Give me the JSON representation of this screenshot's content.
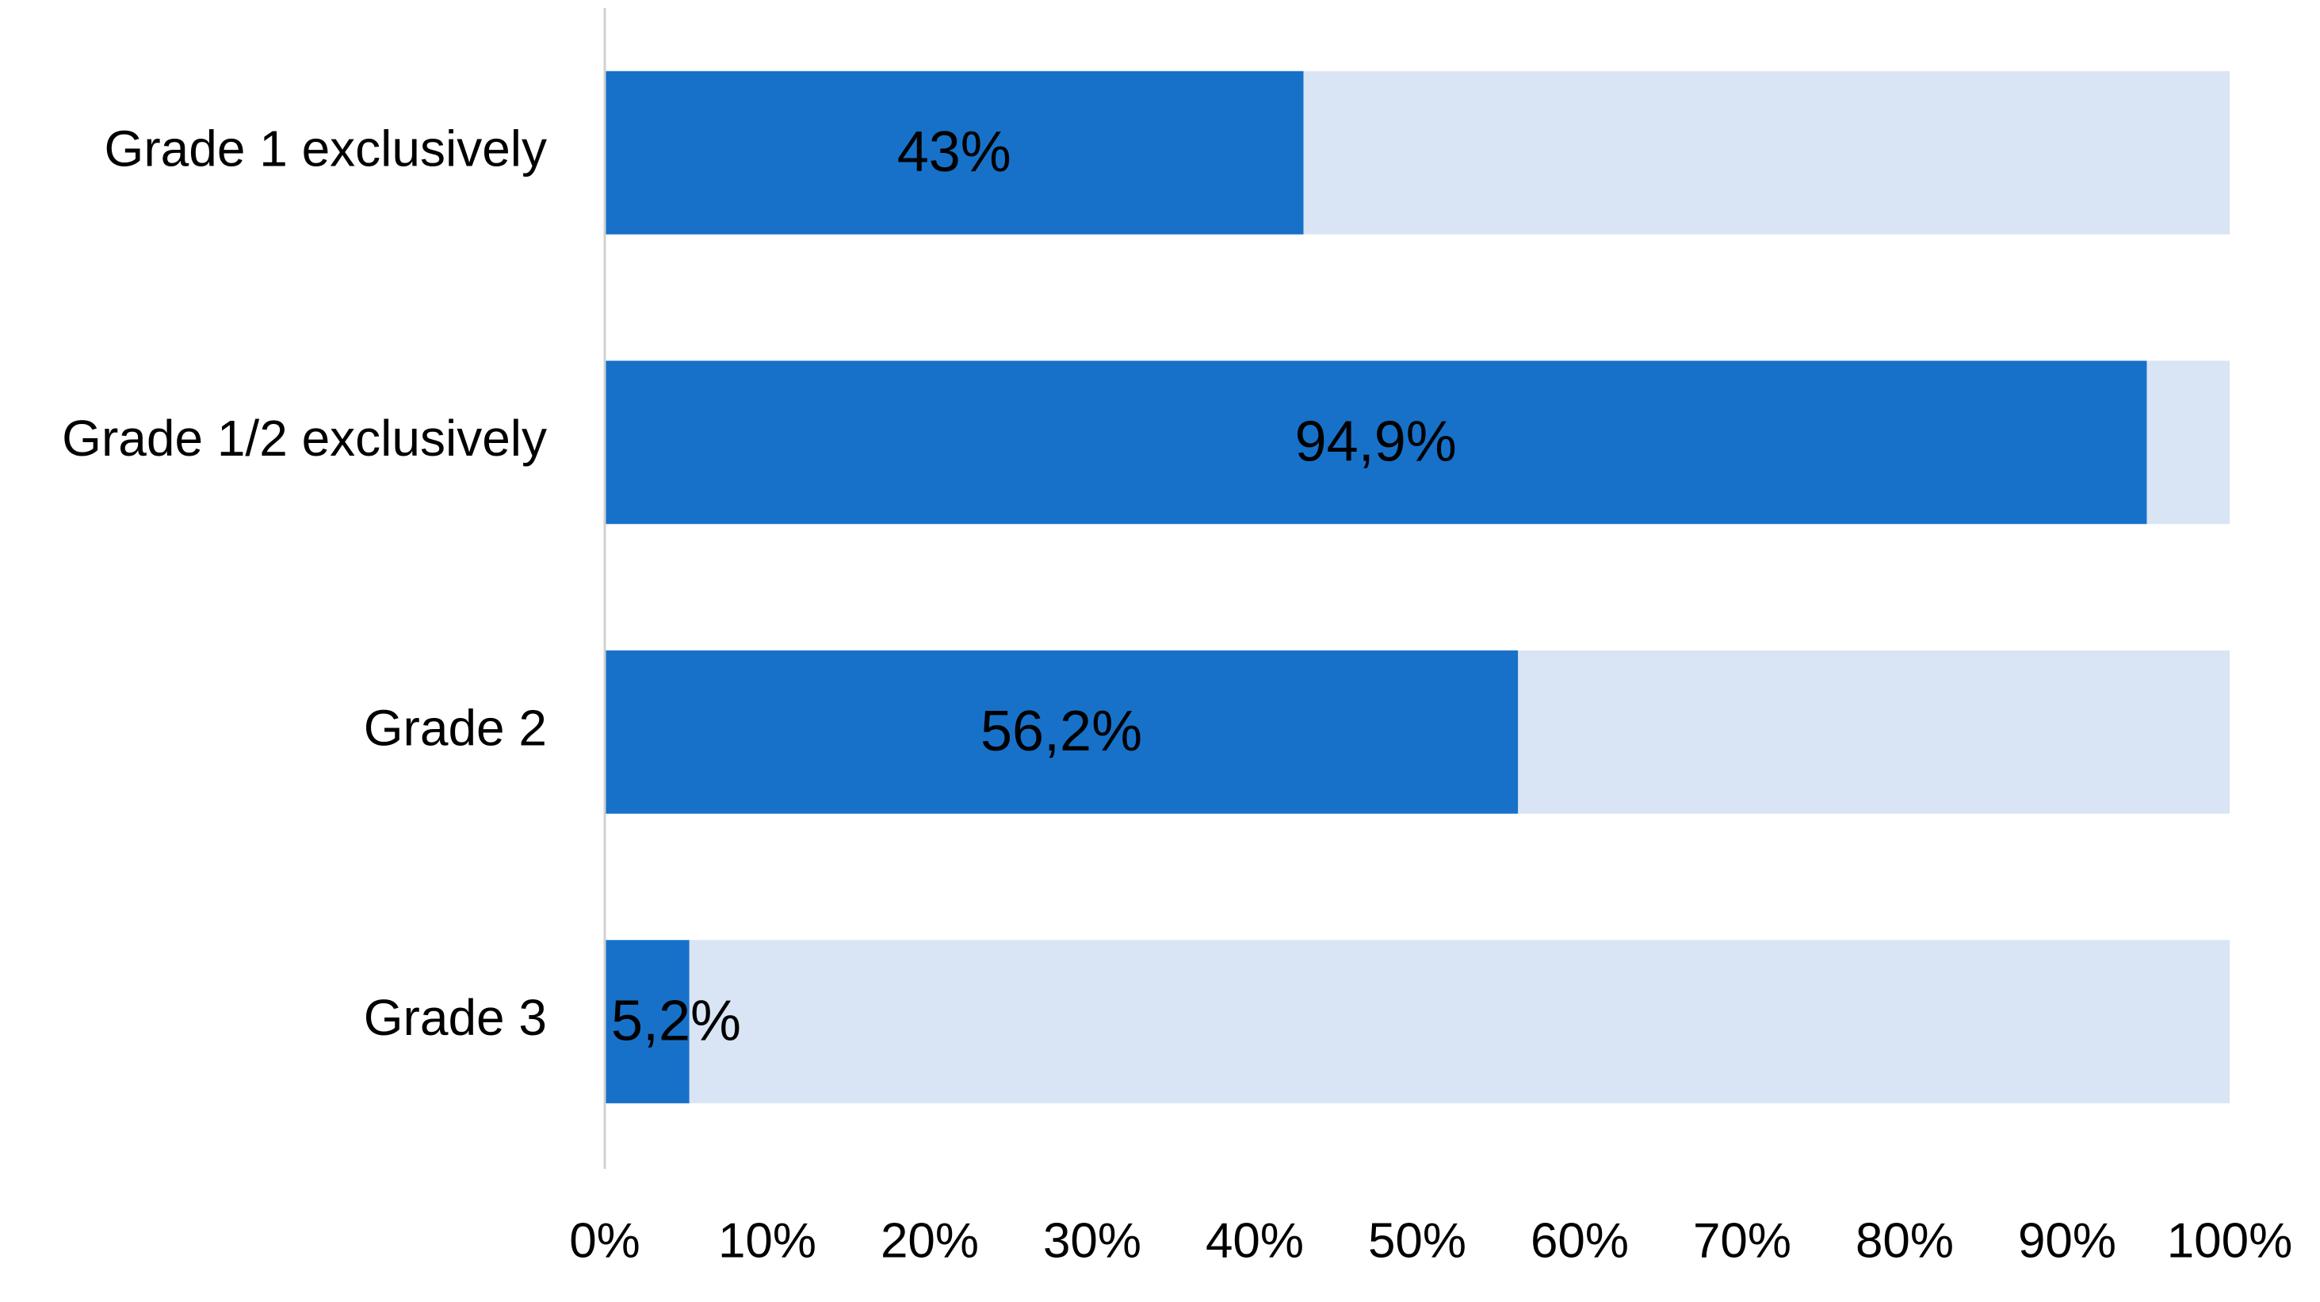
{
  "chart_data": {
    "type": "bar",
    "orientation": "horizontal",
    "categories": [
      "Grade 1 exclusively",
      "Grade 1/2 exclusively",
      "Grade 2",
      "Grade 3"
    ],
    "values": [
      43,
      94.9,
      56.2,
      5.2
    ],
    "value_labels": [
      "43%",
      "94,9%",
      "56,2%",
      "5,2%"
    ],
    "color": "#1771c9",
    "track_color": "#d9e4f4",
    "xlim": [
      0,
      100
    ],
    "xticks": [
      {
        "value": 0,
        "label": "0%"
      },
      {
        "value": 10,
        "label": "10%"
      },
      {
        "value": 20,
        "label": "20%"
      },
      {
        "value": 30,
        "label": "30%"
      },
      {
        "value": 40,
        "label": "40%"
      },
      {
        "value": 50,
        "label": "50%"
      },
      {
        "value": 60,
        "label": "60%"
      },
      {
        "value": 70,
        "label": "70%"
      },
      {
        "value": 80,
        "label": "80%"
      },
      {
        "value": 90,
        "label": "90%"
      },
      {
        "value": 100,
        "label": "100%"
      }
    ],
    "grid": false
  }
}
